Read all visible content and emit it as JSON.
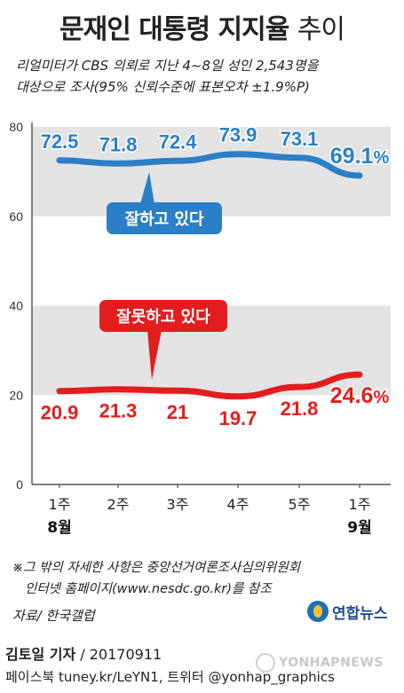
{
  "title": {
    "main": "문재인 대통령 지지율",
    "suffix": "추이"
  },
  "subtitle": {
    "line1": "리얼미터가 CBS 의뢰로 지난 4~8일 성인 2,543명을",
    "line2": "대상으로 조사(95% 신뢰수준에 표본오차 ±1.9%P)"
  },
  "chart_data": {
    "type": "line",
    "categories": [
      "1주",
      "2주",
      "3주",
      "4주",
      "5주",
      "1주"
    ],
    "month_labels": [
      {
        "index": 0,
        "label": "8월"
      },
      {
        "index": 5,
        "label": "9월"
      }
    ],
    "ylim": [
      0,
      80
    ],
    "yticks": [
      0,
      20,
      40,
      60,
      80
    ],
    "unit": "%",
    "series": [
      {
        "name": "잘하고 있다",
        "color": "#2a7fc7",
        "values": [
          72.5,
          71.8,
          72.4,
          73.9,
          73.1,
          69.1
        ],
        "label_pos": "above"
      },
      {
        "name": "잘못하고 있다",
        "color": "#e31d1d",
        "values": [
          20.9,
          21.3,
          21.0,
          19.7,
          21.8,
          24.6
        ],
        "label_pos": "below"
      }
    ],
    "shaded_bands": [
      [
        60,
        80
      ],
      [
        20,
        40
      ]
    ]
  },
  "note": {
    "line1": "※그 밖의 자세한 사항은 중앙선거여론조사심의위원회",
    "line2": "인터넷 홈페이지(www.nesdc.go.kr)를 참조"
  },
  "source": "자료/ 한국갤럽",
  "logo": {
    "text": "연합뉴스"
  },
  "author": {
    "name": "김토일 기자",
    "date": " / 20170911"
  },
  "social": "페이스북 tuney.kr/LeYN1, 트위터 @yonhap_graphics",
  "watermark": "YONHAPNEWS"
}
